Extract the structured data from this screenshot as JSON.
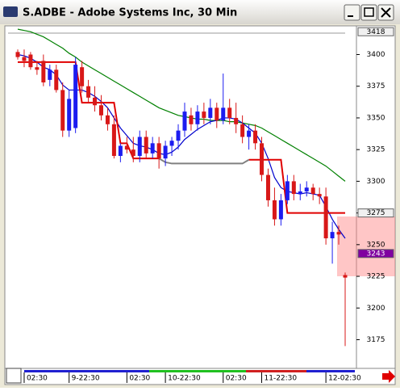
{
  "window": {
    "title": "S.ADBE - Adobe Systems Inc, 30 Min"
  },
  "chart_data": {
    "type": "candlestick",
    "categories": [
      null,
      "02:30",
      null,
      null,
      null,
      null,
      null,
      null,
      "9-22:30",
      null,
      null,
      null,
      null,
      null,
      null,
      null,
      null,
      "02:30",
      null,
      null,
      null,
      null,
      null,
      "10-22:30",
      null,
      null,
      null,
      null,
      null,
      null,
      null,
      null,
      "02:30",
      null,
      null,
      null,
      null,
      null,
      "11-22:30",
      null,
      null,
      null,
      null,
      null,
      null,
      null,
      null,
      null,
      "12-02:30",
      null,
      null,
      null
    ],
    "open": [
      3402,
      3398,
      3400,
      3390,
      3395,
      3380,
      3388,
      3372,
      3340,
      3342,
      3390,
      3375,
      3366,
      3360,
      3352,
      3345,
      3320,
      3328,
      3325,
      3320,
      3335,
      3322,
      3330,
      3318,
      3328,
      3332,
      3340,
      3352,
      3345,
      3355,
      3350,
      3358,
      3348,
      3358,
      3350,
      3345,
      3335,
      3340,
      3330,
      3305,
      3285,
      3270,
      3285,
      3300,
      3290,
      3292,
      3295,
      3290,
      3288,
      3255,
      3260,
      3226
    ],
    "high": [
      3404,
      3404,
      3402,
      3395,
      3400,
      3392,
      3392,
      3378,
      3372,
      3398,
      3395,
      3380,
      3375,
      3368,
      3358,
      3352,
      3330,
      3335,
      3335,
      3340,
      3340,
      3335,
      3335,
      3332,
      3335,
      3345,
      3362,
      3358,
      3360,
      3362,
      3365,
      3362,
      3385,
      3365,
      3362,
      3352,
      3345,
      3345,
      3335,
      3310,
      3295,
      3290,
      3305,
      3305,
      3298,
      3300,
      3298,
      3295,
      3295,
      3268,
      3265,
      3228
    ],
    "low": [
      3396,
      3390,
      3388,
      3384,
      3375,
      3375,
      3370,
      3335,
      3335,
      3338,
      3370,
      3362,
      3355,
      3348,
      3340,
      3318,
      3315,
      3322,
      3315,
      3315,
      3318,
      3318,
      3310,
      3312,
      3320,
      3325,
      3335,
      3340,
      3340,
      3345,
      3345,
      3342,
      3345,
      3345,
      3338,
      3330,
      3325,
      3325,
      3300,
      3280,
      3265,
      3265,
      3282,
      3285,
      3285,
      3288,
      3285,
      3282,
      3250,
      3235,
      3250,
      3170
    ],
    "close": [
      3398,
      3395,
      3390,
      3388,
      3378,
      3388,
      3372,
      3340,
      3365,
      3392,
      3375,
      3366,
      3360,
      3352,
      3345,
      3320,
      3328,
      3325,
      3320,
      3335,
      3322,
      3330,
      3318,
      3328,
      3332,
      3340,
      3355,
      3345,
      3355,
      3350,
      3358,
      3348,
      3358,
      3350,
      3345,
      3335,
      3340,
      3330,
      3305,
      3285,
      3270,
      3285,
      3300,
      3290,
      3292,
      3295,
      3290,
      3288,
      3255,
      3260,
      3258,
      3224
    ],
    "up_color": "#1c1cf0",
    "down_color": "#d81818",
    "overlays": [
      {
        "color": "#008000",
        "values": [
          3420,
          3419,
          3418,
          3416,
          3414,
          3411,
          3408,
          3405,
          3401,
          3398,
          3394,
          3391,
          3388,
          3385,
          3382,
          3379,
          3376,
          3373,
          3370,
          3367,
          3364,
          3361,
          3358,
          3356,
          3354,
          3352,
          3351,
          3350,
          3349,
          3349,
          3348,
          3348,
          3348,
          3347,
          3347,
          3346,
          3345,
          3344,
          3342,
          3339,
          3336,
          3333,
          3330,
          3327,
          3324,
          3321,
          3318,
          3315,
          3312,
          3308,
          3304,
          3300
        ]
      },
      {
        "color": "#0000cc",
        "values": [
          3400,
          3399,
          3397,
          3394,
          3390,
          3388,
          3384,
          3376,
          3372,
          3372,
          3372,
          3370,
          3367,
          3363,
          3358,
          3350,
          3342,
          3336,
          3330,
          3328,
          3327,
          3325,
          3322,
          3321,
          3323,
          3327,
          3333,
          3337,
          3341,
          3344,
          3347,
          3348,
          3350,
          3350,
          3349,
          3346,
          3342,
          3338,
          3330,
          3318,
          3303,
          3295,
          3292,
          3291,
          3290,
          3291,
          3290,
          3289,
          3280,
          3270,
          3262,
          3255
        ]
      },
      {
        "color": "#e00000",
        "values": [
          3394,
          3394,
          3394,
          3394,
          3394,
          3394,
          3394,
          3394,
          3394,
          3394,
          3362,
          3362,
          3362,
          3362,
          3362,
          3362,
          3330,
          3330,
          3318,
          3318,
          3318,
          3318,
          3318,
          null,
          null,
          null,
          null,
          null,
          null,
          null,
          null,
          null,
          null,
          null,
          null,
          null,
          3317,
          3317,
          3317,
          3317,
          3317,
          3317,
          3275,
          3275,
          3275,
          3275,
          3275,
          3275,
          3275,
          3275,
          3275,
          3275
        ]
      },
      {
        "color": "#808080",
        "values": [
          null,
          null,
          null,
          null,
          null,
          null,
          null,
          null,
          null,
          null,
          null,
          null,
          null,
          null,
          null,
          null,
          null,
          null,
          null,
          null,
          null,
          null,
          3318,
          3315,
          3314,
          3314,
          3314,
          3314,
          3314,
          3314,
          3314,
          3314,
          3314,
          3314,
          3314,
          3314,
          3317,
          null,
          null,
          null,
          null,
          null,
          null,
          null,
          null,
          null,
          null,
          null,
          null,
          null,
          null,
          null
        ]
      }
    ],
    "ylim": [
      3153,
      3422
    ],
    "yticks": [
      3175,
      3200,
      3225,
      3250,
      3275,
      3300,
      3325,
      3350,
      3375,
      3400
    ],
    "price_markers": [
      3418,
      3275,
      3243
    ]
  }
}
